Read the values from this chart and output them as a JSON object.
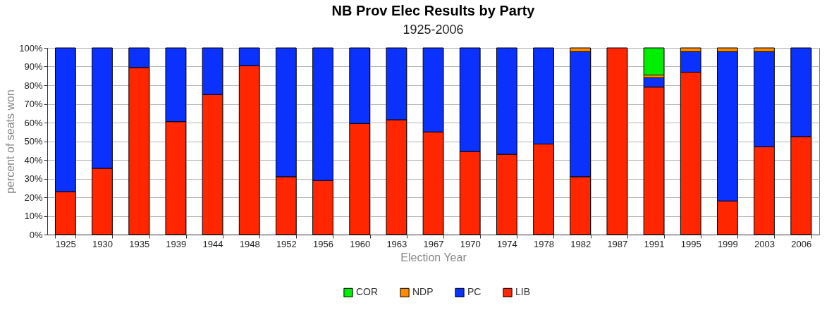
{
  "chart_data": {
    "type": "bar",
    "title": "NB Prov Elec Results by Party",
    "subtitle": "1925-2006",
    "xlabel": "Election Year",
    "ylabel": "percent of seats won",
    "categories": [
      "1925",
      "1930",
      "1935",
      "1939",
      "1944",
      "1948",
      "1952",
      "1956",
      "1960",
      "1963",
      "1967",
      "1970",
      "1974",
      "1978",
      "1982",
      "1987",
      "1991",
      "1995",
      "1999",
      "2003",
      "2006"
    ],
    "stacked": true,
    "series": [
      {
        "name": "LIB",
        "color": "#ff2600",
        "values": [
          23,
          35.5,
          89.5,
          60.5,
          75,
          90.5,
          31,
          29,
          59.5,
          61.5,
          55,
          44.5,
          43,
          48.5,
          31,
          100,
          79,
          87,
          18,
          47,
          52.5
        ]
      },
      {
        "name": "PC",
        "color": "#0b31ff",
        "values": [
          77,
          64.5,
          10.5,
          39.5,
          25,
          9.5,
          69,
          71,
          40.5,
          38.5,
          45,
          55.5,
          57,
          51.5,
          67,
          null,
          5,
          11,
          80,
          51,
          47.5
        ]
      },
      {
        "name": "NDP",
        "color": "#ff8c00",
        "values": [
          null,
          null,
          null,
          null,
          null,
          null,
          null,
          null,
          null,
          null,
          null,
          null,
          null,
          null,
          2,
          null,
          1.5,
          2,
          2,
          2,
          null
        ]
      },
      {
        "name": "COR",
        "color": "#00ee00",
        "values": [
          null,
          null,
          null,
          null,
          null,
          null,
          null,
          null,
          null,
          null,
          null,
          null,
          null,
          null,
          null,
          null,
          14.5,
          null,
          null,
          null,
          null
        ]
      }
    ],
    "ylim": [
      0,
      100
    ],
    "yticks": [
      {
        "value": 0,
        "label": "0%"
      },
      {
        "value": 10,
        "label": "10%"
      },
      {
        "value": 20,
        "label": "20%"
      },
      {
        "value": 30,
        "label": "30%"
      },
      {
        "value": 40,
        "label": "40%"
      },
      {
        "value": 50,
        "label": "50%"
      },
      {
        "value": 60,
        "label": "60%"
      },
      {
        "value": 70,
        "label": "70%"
      },
      {
        "value": 80,
        "label": "80%"
      },
      {
        "value": 90,
        "label": "90%"
      },
      {
        "value": 100,
        "label": "100%"
      }
    ],
    "grid": true,
    "legend": "bottom"
  }
}
